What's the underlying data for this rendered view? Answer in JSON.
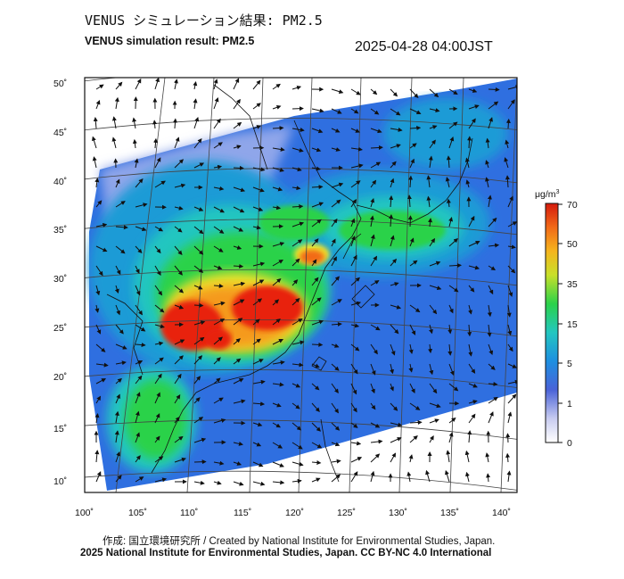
{
  "header": {
    "title_jp": "VENUS シミュレーション結果: PM2.5",
    "title_en": "VENUS simulation result: PM2.5",
    "timestamp": "2025-04-28 04:00JST"
  },
  "map": {
    "lat_labels": [
      "50˚",
      "45˚",
      "40˚",
      "35˚",
      "30˚",
      "25˚",
      "20˚",
      "15˚",
      "10˚"
    ],
    "lon_labels": [
      "100˚",
      "105˚",
      "110˚",
      "115˚",
      "120˚",
      "125˚",
      "130˚",
      "135˚",
      "140˚"
    ],
    "colors": {
      "ocean_blue": "#2f6fe0",
      "mid_blue": "#1f9bd6",
      "cyan": "#23c6c0",
      "green": "#2bd24a",
      "yellow": "#f0e02a",
      "orange": "#f59a1e",
      "red": "#e8220f"
    }
  },
  "colorbar": {
    "unit_label": "μg/m",
    "unit_sup": "3",
    "ticks": [
      "70",
      "50",
      "35",
      "15",
      "5",
      "1",
      "0"
    ]
  },
  "footer": {
    "credit": "作成: 国立環境研究所 / Created by National Institute for Environmental Studies, Japan.",
    "copyright": "2025 National Institute for Environmental Studies, Japan. CC BY-NC 4.0 International"
  }
}
